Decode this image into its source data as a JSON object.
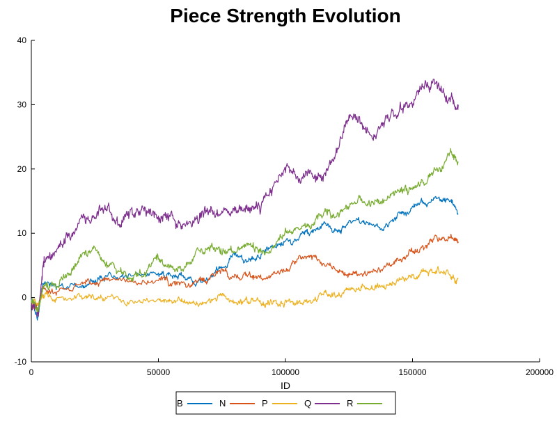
{
  "chart_data": {
    "type": "line",
    "title": "Piece Strength Evolution",
    "xlabel": "ID",
    "ylabel": "",
    "xlim": [
      0,
      200000
    ],
    "ylim": [
      -10,
      40
    ],
    "x_ticks": [
      0,
      50000,
      100000,
      150000,
      200000
    ],
    "x_tick_labels": [
      "0",
      "50000",
      "100000",
      "150000",
      "200000"
    ],
    "y_ticks": [
      -10,
      0,
      10,
      20,
      30,
      40
    ],
    "y_tick_labels": [
      "-10",
      "0",
      "10",
      "20",
      "30",
      "40"
    ],
    "grid": false,
    "legend_position": "bottom-center",
    "legend_orientation": "horizontal",
    "series": [
      {
        "name": "B",
        "color": "#0072BD",
        "x": [
          0,
          2500,
          5000,
          10000,
          20000,
          25000,
          30000,
          40000,
          50000,
          55000,
          60000,
          65000,
          70000,
          75000,
          80000,
          85000,
          90000,
          95000,
          100000,
          105000,
          110000,
          115000,
          120000,
          125000,
          130000,
          135000,
          140000,
          145000,
          150000,
          155000,
          160000,
          165000,
          168000
        ],
        "y": [
          -0.5,
          -3.5,
          3,
          1.5,
          1.5,
          2.5,
          3.5,
          3,
          4,
          3.5,
          3,
          2.5,
          3,
          5,
          6.5,
          6,
          7,
          8,
          9,
          9.5,
          10,
          12,
          10,
          12,
          11.5,
          11,
          11,
          13,
          14,
          14.5,
          15.5,
          15,
          13
        ]
      },
      {
        "name": "N",
        "color": "#D95319",
        "x": [
          0,
          2500,
          5000,
          10000,
          20000,
          25000,
          30000,
          40000,
          50000,
          55000,
          60000,
          65000,
          70000,
          75000,
          80000,
          85000,
          90000,
          95000,
          100000,
          105000,
          110000,
          115000,
          120000,
          125000,
          130000,
          135000,
          140000,
          145000,
          150000,
          155000,
          160000,
          165000,
          168000
        ],
        "y": [
          -1,
          -1.5,
          1.5,
          1,
          2,
          2.5,
          3,
          2,
          2.5,
          2.5,
          2.5,
          2,
          3,
          4,
          3.5,
          3.5,
          3,
          3.5,
          4.5,
          6,
          6.5,
          5.5,
          4.5,
          3.5,
          3.5,
          4,
          4.5,
          5.5,
          7,
          8,
          9,
          9.5,
          8.5
        ]
      },
      {
        "name": "P",
        "color": "#EDB120",
        "x": [
          0,
          2500,
          5000,
          10000,
          20000,
          25000,
          30000,
          40000,
          50000,
          55000,
          60000,
          65000,
          70000,
          75000,
          80000,
          85000,
          90000,
          95000,
          100000,
          105000,
          110000,
          115000,
          120000,
          125000,
          130000,
          135000,
          140000,
          145000,
          150000,
          155000,
          160000,
          165000,
          168000
        ],
        "y": [
          -0.5,
          -1,
          0.5,
          0,
          0,
          0.5,
          -0.5,
          -0.5,
          -0.5,
          -0.5,
          -0.5,
          -1,
          -0.5,
          0,
          -0.5,
          -0.5,
          -0.5,
          -1,
          -0.5,
          -1,
          0,
          0.5,
          0,
          1,
          1.5,
          1.5,
          2,
          2.5,
          3,
          4,
          4.5,
          3.5,
          3
        ]
      },
      {
        "name": "Q",
        "color": "#7E2F8E",
        "x": [
          0,
          2500,
          5000,
          10000,
          15000,
          20000,
          25000,
          30000,
          35000,
          40000,
          45000,
          50000,
          55000,
          60000,
          65000,
          70000,
          75000,
          80000,
          85000,
          90000,
          95000,
          100000,
          105000,
          110000,
          115000,
          120000,
          125000,
          130000,
          135000,
          140000,
          145000,
          150000,
          155000,
          160000,
          165000,
          168000
        ],
        "y": [
          -1,
          -2.5,
          6,
          7,
          10,
          12,
          12.5,
          14,
          11,
          12.5,
          13.5,
          13,
          12.5,
          11.5,
          13,
          13.5,
          13.5,
          13.5,
          14.5,
          13.5,
          17,
          20,
          19,
          19,
          19.5,
          23,
          28.5,
          27,
          26,
          28,
          29.5,
          31,
          33,
          33,
          31,
          30
        ]
      },
      {
        "name": "R",
        "color": "#77AC30",
        "x": [
          0,
          2500,
          5000,
          10000,
          15000,
          20000,
          25000,
          30000,
          35000,
          40000,
          45000,
          50000,
          55000,
          60000,
          65000,
          70000,
          75000,
          80000,
          85000,
          90000,
          95000,
          100000,
          105000,
          110000,
          115000,
          120000,
          125000,
          130000,
          135000,
          140000,
          145000,
          150000,
          155000,
          160000,
          165000,
          168000
        ],
        "y": [
          -1,
          -2,
          2.5,
          1.5,
          4,
          6,
          7.5,
          5,
          4,
          3.5,
          4,
          6.5,
          4.5,
          4.5,
          7,
          8,
          7.5,
          6.5,
          8,
          7.5,
          8,
          10,
          11,
          11.5,
          13,
          13,
          14.5,
          15,
          14.5,
          15.5,
          16.5,
          17,
          18,
          20,
          22.5,
          21
        ]
      }
    ]
  }
}
